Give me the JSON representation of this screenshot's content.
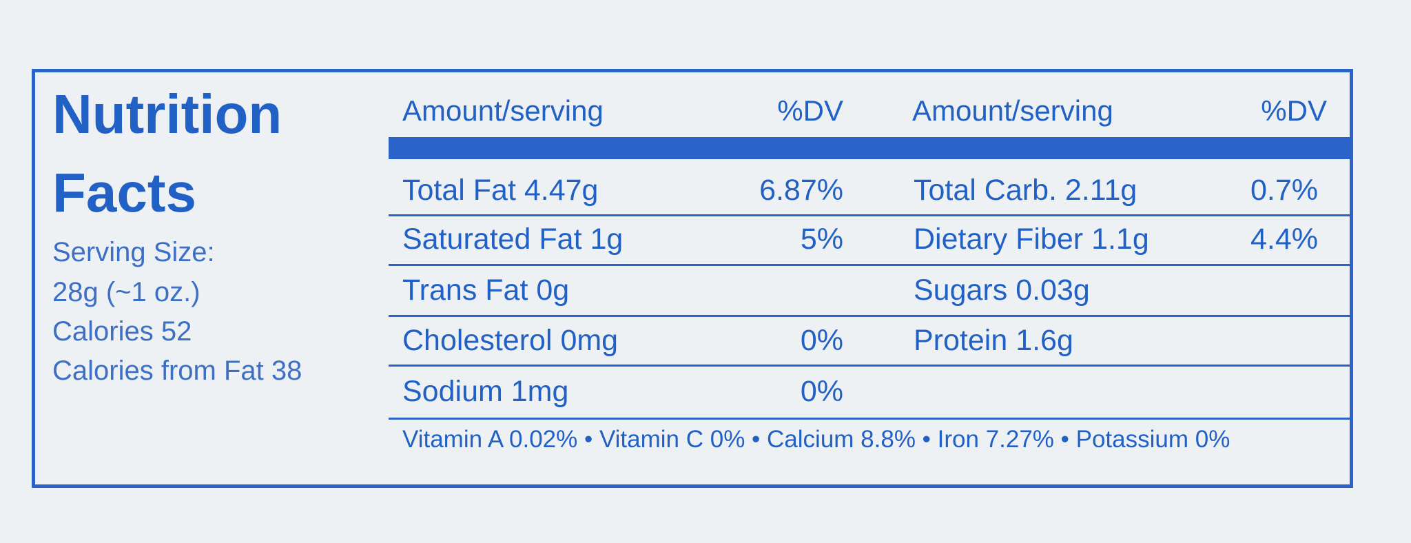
{
  "title_lines": [
    "Nutrition",
    "Facts"
  ],
  "serving": [
    "Serving Size:",
    "28g (~1 oz.)",
    "Calories 52",
    "Calories from Fat 38"
  ],
  "headers": [
    "Amount/serving",
    "%DV",
    "Amount/serving",
    "%DV"
  ],
  "rows": [
    [
      "Total Fat 4.47g",
      "6.87%",
      "Total Carb. 2.11g",
      "0.7%"
    ],
    [
      "Saturated Fat 1g",
      "5%",
      "Dietary Fiber 1.1g",
      "4.4%"
    ],
    [
      "Trans Fat 0g",
      null,
      "Sugars 0.03g",
      null
    ],
    [
      "Cholesterol 0mg",
      "0%",
      "Protein 1.6g",
      null
    ],
    [
      "Sodium 1mg",
      "0%",
      null,
      null
    ]
  ],
  "footer": "Vitamin A 0.02% • Vitamin C 0% • Calcium 8.8% • Iron 7.27% • Potassium 0%"
}
